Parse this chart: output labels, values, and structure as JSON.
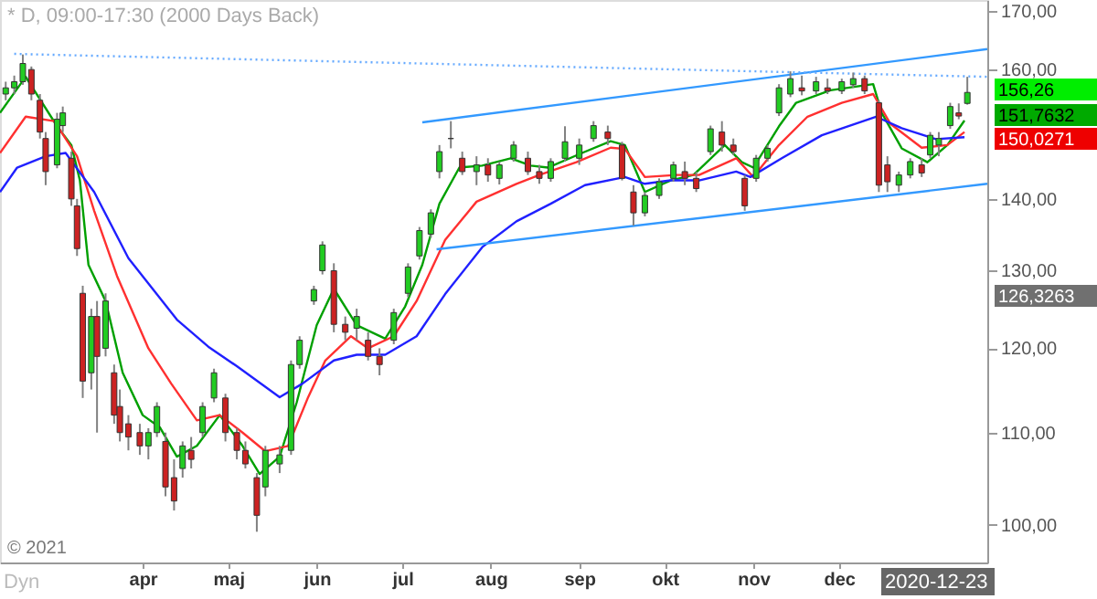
{
  "chart_data": {
    "type": "candlestick",
    "title": "* D, 09:00-17:30 (2000 Days Back)",
    "x": [
      "2020-02-13",
      "2020-02-16",
      "2020-02-19",
      "2020-02-22",
      "2020-02-25",
      "2020-02-27",
      "2020-03-02",
      "2020-03-04",
      "2020-03-07",
      "2020-03-09",
      "2020-03-11",
      "2020-03-14",
      "2020-03-16",
      "2020-03-19",
      "2020-03-22",
      "2020-03-24",
      "2020-03-27",
      "2020-03-31",
      "2020-04-03",
      "2020-04-06",
      "2020-04-09",
      "2020-04-12",
      "2020-04-15",
      "2020-04-18",
      "2020-04-22",
      "2020-04-26",
      "2020-04-30",
      "2020-05-04",
      "2020-05-07",
      "2020-05-11",
      "2020-05-14",
      "2020-05-19",
      "2020-05-23",
      "2020-05-26",
      "2020-05-31",
      "2020-06-03",
      "2020-06-07",
      "2020-06-11",
      "2020-06-15",
      "2020-06-19",
      "2020-06-23",
      "2020-06-28",
      "2020-07-03",
      "2020-07-07",
      "2020-07-11",
      "2020-07-14",
      "2020-07-18",
      "2020-07-22",
      "2020-07-27",
      "2020-07-31",
      "2020-08-04",
      "2020-08-09",
      "2020-08-14",
      "2020-08-18",
      "2020-08-22",
      "2020-08-27",
      "2020-09-01",
      "2020-09-06",
      "2020-09-11",
      "2020-09-16",
      "2020-09-20",
      "2020-09-24",
      "2020-09-29",
      "2020-10-04",
      "2020-10-08",
      "2020-10-12",
      "2020-10-17",
      "2020-10-21",
      "2020-10-25",
      "2020-10-29",
      "2020-11-02",
      "2020-11-06",
      "2020-11-10",
      "2020-11-14",
      "2020-11-18",
      "2020-11-23",
      "2020-11-27",
      "2020-12-02",
      "2020-12-06",
      "2020-12-10",
      "2020-12-15",
      "2020-12-18",
      "2020-12-22",
      "2020-12-26",
      "2020-12-30",
      "2021-01-02",
      "2021-01-05",
      "2021-01-09",
      "2021-01-12",
      "2021-01-15"
    ],
    "ohlc": [
      [
        156,
        158,
        155,
        157
      ],
      [
        157,
        159,
        156,
        158
      ],
      [
        158,
        162.5,
        157.5,
        161
      ],
      [
        160,
        160.5,
        155,
        156
      ],
      [
        155,
        156,
        149,
        150
      ],
      [
        149,
        150,
        142,
        144
      ],
      [
        145,
        153,
        144.5,
        152
      ],
      [
        151,
        154,
        150,
        153
      ],
      [
        146,
        147,
        139,
        140
      ],
      [
        139,
        140,
        132,
        133
      ],
      [
        127,
        128,
        114,
        116
      ],
      [
        117,
        125,
        115,
        124
      ],
      [
        124,
        126,
        110,
        119
      ],
      [
        120,
        127,
        119,
        126
      ],
      [
        117,
        118,
        111,
        112
      ],
      [
        113,
        115,
        109,
        110
      ],
      [
        111,
        112,
        108,
        109.5
      ],
      [
        110,
        111,
        107.5,
        108.5
      ],
      [
        108.5,
        110.5,
        107,
        110
      ],
      [
        110,
        113.5,
        109.5,
        113
      ],
      [
        109,
        110,
        103,
        104
      ],
      [
        105,
        107,
        101.5,
        102.5
      ],
      [
        106,
        109,
        105,
        108.5
      ],
      [
        108,
        109.5,
        106,
        107
      ],
      [
        110,
        113.5,
        109.5,
        113
      ],
      [
        114,
        117.5,
        113.5,
        117
      ],
      [
        114,
        114.5,
        109,
        110
      ],
      [
        110,
        110.5,
        107,
        108
      ],
      [
        108,
        109,
        106,
        106.5
      ],
      [
        105,
        105.5,
        99.3,
        101
      ],
      [
        104,
        108.5,
        103,
        108
      ],
      [
        106.5,
        108.5,
        105.5,
        107.5
      ],
      [
        108,
        118.5,
        107.5,
        118
      ],
      [
        118,
        121.5,
        117.5,
        121
      ],
      [
        126,
        128,
        125.5,
        127.5
      ],
      [
        130,
        134,
        129.5,
        133.5
      ],
      [
        130,
        131,
        122,
        123
      ],
      [
        123,
        124,
        121,
        122
      ],
      [
        122.5,
        125,
        121,
        124
      ],
      [
        121,
        122,
        118.5,
        119
      ],
      [
        119,
        120,
        116.7,
        118
      ],
      [
        121,
        125,
        120.5,
        124.5
      ],
      [
        127,
        131,
        126.5,
        130.5
      ],
      [
        132,
        136,
        131.5,
        135.5
      ],
      [
        135,
        138.5,
        134.5,
        138
      ],
      [
        144,
        148,
        143,
        147
      ],
      [
        149,
        151.7,
        147.5,
        149
      ],
      [
        146,
        147,
        143.5,
        144
      ],
      [
        144,
        146.3,
        142,
        145
      ],
      [
        145,
        146,
        142.5,
        143.5
      ],
      [
        143,
        145.5,
        142.1,
        145
      ],
      [
        146,
        148.6,
        145.5,
        148
      ],
      [
        146,
        147,
        143.5,
        144
      ],
      [
        144,
        145,
        142.2,
        143
      ],
      [
        143,
        146,
        142.5,
        145.5
      ],
      [
        146,
        150.9,
        145.5,
        148.5
      ],
      [
        146,
        149,
        145,
        148
      ],
      [
        149,
        151.7,
        148.5,
        151
      ],
      [
        150,
        151,
        148,
        149
      ],
      [
        148,
        148.5,
        142.7,
        143
      ],
      [
        141,
        142,
        136.2,
        138
      ],
      [
        138,
        141,
        137.5,
        140.5
      ],
      [
        140.5,
        143,
        140,
        142.5
      ],
      [
        143,
        145.5,
        142.5,
        145
      ],
      [
        144,
        145.5,
        142,
        143
      ],
      [
        143,
        144,
        141,
        141.5
      ],
      [
        147,
        151,
        146.5,
        150.5
      ],
      [
        150,
        151.7,
        147,
        148
      ],
      [
        148,
        149,
        146.5,
        147
      ],
      [
        143,
        143.5,
        138.3,
        139
      ],
      [
        143,
        146.5,
        142.5,
        146
      ],
      [
        146,
        148,
        145.5,
        147.5
      ],
      [
        153,
        157.6,
        152.5,
        157
      ],
      [
        156,
        159.7,
        155.5,
        158.5
      ],
      [
        157,
        159,
        155.8,
        156.5
      ],
      [
        156.5,
        158.8,
        156,
        158
      ],
      [
        157,
        158.5,
        156,
        156.5
      ],
      [
        156.5,
        158.5,
        156,
        158
      ],
      [
        157.5,
        159.5,
        157,
        158.5
      ],
      [
        158.5,
        159,
        156,
        156.5
      ],
      [
        154.6,
        155,
        141,
        142
      ],
      [
        145,
        146.3,
        141,
        142.5
      ],
      [
        142,
        144,
        141,
        143.5
      ],
      [
        143.5,
        146,
        143,
        145.5
      ],
      [
        145,
        146,
        143.2,
        143.8
      ],
      [
        146.5,
        150,
        146,
        149.5
      ],
      [
        148,
        150,
        146.3,
        149
      ],
      [
        151,
        154.6,
        150.5,
        154
      ],
      [
        153,
        154.5,
        152,
        152.5
      ],
      [
        154.5,
        158.8,
        154.3,
        156.26
      ]
    ],
    "series": [
      {
        "type": "line",
        "color": "#00a000",
        "x": [
          "2020-02-11",
          "2020-02-20",
          "2020-02-23",
          "2020-03-02",
          "2020-03-07",
          "2020-03-10",
          "2020-03-13",
          "2020-03-19",
          "2020-03-25",
          "2020-04-01",
          "2020-04-07",
          "2020-04-13",
          "2020-04-20",
          "2020-04-28",
          "2020-05-06",
          "2020-05-12",
          "2020-05-19",
          "2020-05-25",
          "2020-06-01",
          "2020-06-07",
          "2020-06-15",
          "2020-06-25",
          "2020-07-02",
          "2020-07-08",
          "2020-07-14",
          "2020-07-21",
          "2020-07-29",
          "2020-08-08",
          "2020-08-15",
          "2020-08-21",
          "2020-09-02",
          "2020-09-12",
          "2020-09-17",
          "2020-09-24",
          "2020-10-03",
          "2020-10-11",
          "2020-10-22",
          "2020-10-28",
          "2020-11-01",
          "2020-11-10",
          "2020-11-16",
          "2020-11-28",
          "2020-12-13",
          "2020-12-16",
          "2020-12-23",
          "2021-01-01",
          "2021-01-08",
          "2021-01-14"
        ],
        "values": [
          153,
          158.8,
          156.6,
          150.9,
          148,
          142.7,
          130.8,
          126,
          117,
          112,
          110.6,
          107.3,
          108.5,
          112,
          108.5,
          105.4,
          107.3,
          113.5,
          122.9,
          127.6,
          122.9,
          121.2,
          125.3,
          130.8,
          139.3,
          144.6,
          144.9,
          146,
          144.9,
          144.6,
          146.8,
          148.6,
          148,
          141,
          142.7,
          143.5,
          148,
          145.4,
          144.6,
          150.9,
          154.6,
          156.6,
          157.6,
          153,
          147.5,
          145.4,
          148,
          151.8
        ]
      },
      {
        "type": "line",
        "color": "#ff3030",
        "x": [
          "2020-02-11",
          "2020-02-20",
          "2020-03-01",
          "2020-03-09",
          "2020-03-15",
          "2020-03-23",
          "2020-04-03",
          "2020-04-11",
          "2020-04-20",
          "2020-04-28",
          "2020-05-06",
          "2020-05-14",
          "2020-05-22",
          "2020-05-29",
          "2020-06-04",
          "2020-06-13",
          "2020-06-19",
          "2020-06-28",
          "2020-07-06",
          "2020-07-16",
          "2020-07-27",
          "2020-08-10",
          "2020-08-18",
          "2020-08-31",
          "2020-09-12",
          "2020-09-17",
          "2020-09-24",
          "2020-10-05",
          "2020-10-13",
          "2020-10-26",
          "2020-11-01",
          "2020-11-10",
          "2020-11-20",
          "2020-12-02",
          "2020-12-13",
          "2020-12-19",
          "2020-12-30",
          "2021-01-08",
          "2021-01-14"
        ],
        "values": [
          146.8,
          152.4,
          151.7,
          146.3,
          138.3,
          129.3,
          120,
          115.7,
          111.4,
          112,
          110,
          107.9,
          108.5,
          114.1,
          118.5,
          121.5,
          120,
          121.5,
          126,
          134.2,
          139.6,
          142.2,
          143.5,
          145.4,
          147.6,
          147.4,
          143.2,
          143.5,
          143.5,
          146,
          143.2,
          148,
          152.4,
          154.6,
          156,
          151.3,
          147.6,
          148,
          150
        ]
      },
      {
        "type": "line",
        "color": "#2020ff",
        "x": [
          "2020-02-11",
          "2020-02-17",
          "2020-02-27",
          "2020-03-05",
          "2020-03-15",
          "2020-03-27",
          "2020-04-13",
          "2020-04-24",
          "2020-05-04",
          "2020-05-19",
          "2020-05-27",
          "2020-06-07",
          "2020-06-15",
          "2020-06-25",
          "2020-07-06",
          "2020-07-16",
          "2020-07-29",
          "2020-08-10",
          "2020-08-22",
          "2020-09-03",
          "2020-09-17",
          "2020-09-24",
          "2020-10-03",
          "2020-10-13",
          "2020-10-26",
          "2020-10-31",
          "2020-11-11",
          "2020-11-25",
          "2020-12-14",
          "2020-12-23",
          "2021-01-04",
          "2021-01-14"
        ],
        "values": [
          141,
          144.6,
          146.3,
          146.8,
          141,
          131.7,
          123.6,
          120.2,
          117.8,
          114.1,
          115.7,
          118.5,
          119.2,
          119.2,
          121.5,
          126.9,
          133.2,
          136.8,
          139.3,
          142,
          143.2,
          142.2,
          142.7,
          142.7,
          144,
          143.2,
          146,
          149.5,
          152.4,
          150.6,
          148.9,
          149.2
        ]
      },
      {
        "type": "line",
        "color": "#3399ff",
        "x": [
          "2020-07-08",
          "2021-01-22"
        ],
        "values": [
          151.5,
          163.4
        ]
      },
      {
        "type": "line",
        "color": "#3399ff",
        "x": [
          "2020-07-13",
          "2021-01-22"
        ],
        "values": [
          132.9,
          142.2
        ]
      },
      {
        "type": "line",
        "color": "#66aaff",
        "line_style": "dotted",
        "x": [
          "2020-02-16",
          "2021-01-22"
        ],
        "values": [
          162.6,
          158.8
        ]
      }
    ],
    "xlim": [
      "2020-02-11",
      "2021-01-22"
    ],
    "xticks": [
      {
        "value": "2020-04-01",
        "label": "apr"
      },
      {
        "value": "2020-05-01",
        "label": "maj"
      },
      {
        "value": "2020-06-01",
        "label": "jun"
      },
      {
        "value": "2020-07-01",
        "label": "jul"
      },
      {
        "value": "2020-08-01",
        "label": "aug"
      },
      {
        "value": "2020-09-01",
        "label": "sep"
      },
      {
        "value": "2020-10-01",
        "label": "okt"
      },
      {
        "value": "2020-11-01",
        "label": "nov"
      },
      {
        "value": "2020-12-01",
        "label": "dec"
      }
    ],
    "ylim": [
      96.2,
      171.9
    ],
    "log": "y",
    "yticks": [
      {
        "value": 100,
        "label": "100,00"
      },
      {
        "value": 110,
        "label": "110,00"
      },
      {
        "value": 120,
        "label": "120,00"
      },
      {
        "value": 130,
        "label": "130,00"
      },
      {
        "value": 140,
        "label": "140,00"
      },
      {
        "value": 160,
        "label": "160,00"
      },
      {
        "value": 170,
        "label": "170,00"
      }
    ],
    "annotations": [
      "© 2021",
      "Dyn",
      "156,26",
      "151,7632",
      "150,0271",
      "126,3263",
      "2020-12-23"
    ]
  }
}
